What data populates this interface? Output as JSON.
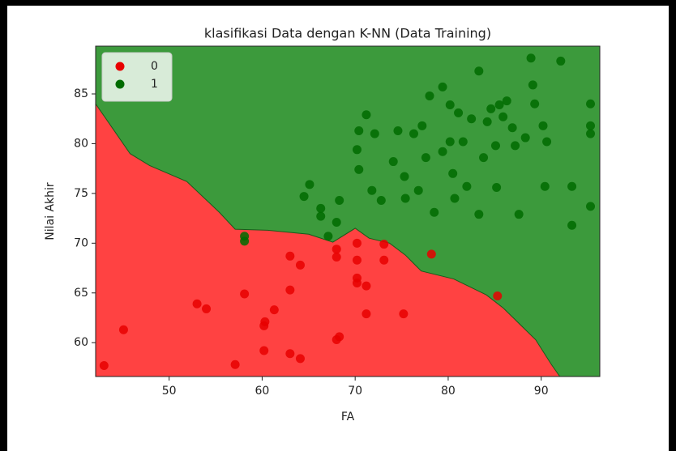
{
  "chart_data": {
    "type": "scatter",
    "title": "klasifikasi Data dengan K-NN (Data Training)",
    "x_label": "FA",
    "y_label": "Nilai Akhir",
    "xlim": [
      42.1,
      96.3
    ],
    "ylim": [
      56.6,
      89.8
    ],
    "xticks": [
      50,
      60,
      70,
      80,
      90
    ],
    "yticks": [
      60,
      65,
      70,
      75,
      80,
      85
    ],
    "grid": false,
    "legend_position": "upper-left",
    "region_colors": [
      "#ff4242",
      "#3c9a3c"
    ],
    "decision_boundary": {
      "x": [
        42.1,
        45.8,
        47.9,
        51.9,
        55.4,
        57.1,
        60.6,
        65.0,
        67.6,
        70.0,
        71.5,
        73.7,
        75.4,
        77.1,
        80.6,
        84.1,
        85.9,
        89.4,
        91.1,
        92.0
      ],
      "y": [
        84.0,
        79.0,
        77.8,
        76.2,
        73.1,
        71.4,
        71.3,
        70.9,
        70.1,
        71.5,
        70.5,
        70.0,
        68.8,
        67.2,
        66.4,
        64.8,
        63.5,
        60.3,
        57.8,
        56.6
      ]
    },
    "series": [
      {
        "name": "0",
        "color": "#e80000",
        "x": [
          43.0,
          45.1,
          53.0,
          54.0,
          57.1,
          58.1,
          60.2,
          60.3,
          60.2,
          61.3,
          63.0,
          64.1,
          63.0,
          64.1,
          63.0,
          68.0,
          68.0,
          68.0,
          68.3,
          70.2,
          70.2,
          70.2,
          70.2,
          71.2,
          71.2,
          73.1,
          73.1,
          75.2,
          78.2,
          85.3
        ],
        "y": [
          57.7,
          61.3,
          63.9,
          63.4,
          57.8,
          64.9,
          61.7,
          62.1,
          59.2,
          63.3,
          58.9,
          58.4,
          68.7,
          67.8,
          65.3,
          68.6,
          69.4,
          60.3,
          60.6,
          70.0,
          68.3,
          66.5,
          66.0,
          65.7,
          62.9,
          69.9,
          68.3,
          62.9,
          68.9,
          64.7
        ]
      },
      {
        "name": "1",
        "color": "#006b00",
        "x": [
          58.1,
          58.1,
          64.5,
          65.1,
          66.3,
          66.3,
          67.1,
          68.0,
          68.3,
          70.4,
          70.2,
          70.4,
          71.2,
          71.8,
          72.1,
          72.8,
          74.1,
          74.6,
          75.3,
          75.4,
          76.3,
          76.8,
          77.2,
          77.6,
          78.0,
          78.5,
          79.4,
          79.4,
          80.2,
          80.2,
          80.5,
          80.7,
          81.1,
          81.6,
          82.0,
          82.5,
          83.3,
          83.3,
          83.8,
          84.2,
          84.6,
          85.1,
          85.2,
          85.5,
          85.9,
          86.3,
          86.9,
          87.2,
          87.6,
          88.3,
          88.9,
          89.1,
          89.3,
          90.2,
          90.4,
          90.6,
          92.1,
          93.3,
          93.3,
          95.3,
          95.3,
          95.3,
          95.3
        ],
        "y": [
          70.7,
          70.2,
          74.7,
          75.9,
          73.5,
          72.7,
          70.7,
          72.1,
          74.3,
          81.3,
          79.4,
          77.4,
          82.9,
          75.3,
          81.0,
          74.3,
          78.2,
          81.3,
          76.7,
          74.5,
          81.0,
          75.3,
          81.8,
          78.6,
          84.8,
          73.1,
          85.7,
          79.2,
          83.9,
          80.2,
          77.0,
          74.5,
          83.1,
          80.2,
          75.7,
          82.5,
          87.3,
          72.9,
          78.6,
          82.2,
          83.5,
          79.8,
          75.6,
          83.9,
          82.7,
          84.3,
          81.6,
          79.8,
          72.9,
          80.6,
          88.6,
          85.9,
          84.0,
          81.8,
          75.7,
          80.2,
          88.3,
          75.7,
          71.8,
          84.0,
          81.8,
          81.0,
          73.7
        ]
      }
    ]
  }
}
